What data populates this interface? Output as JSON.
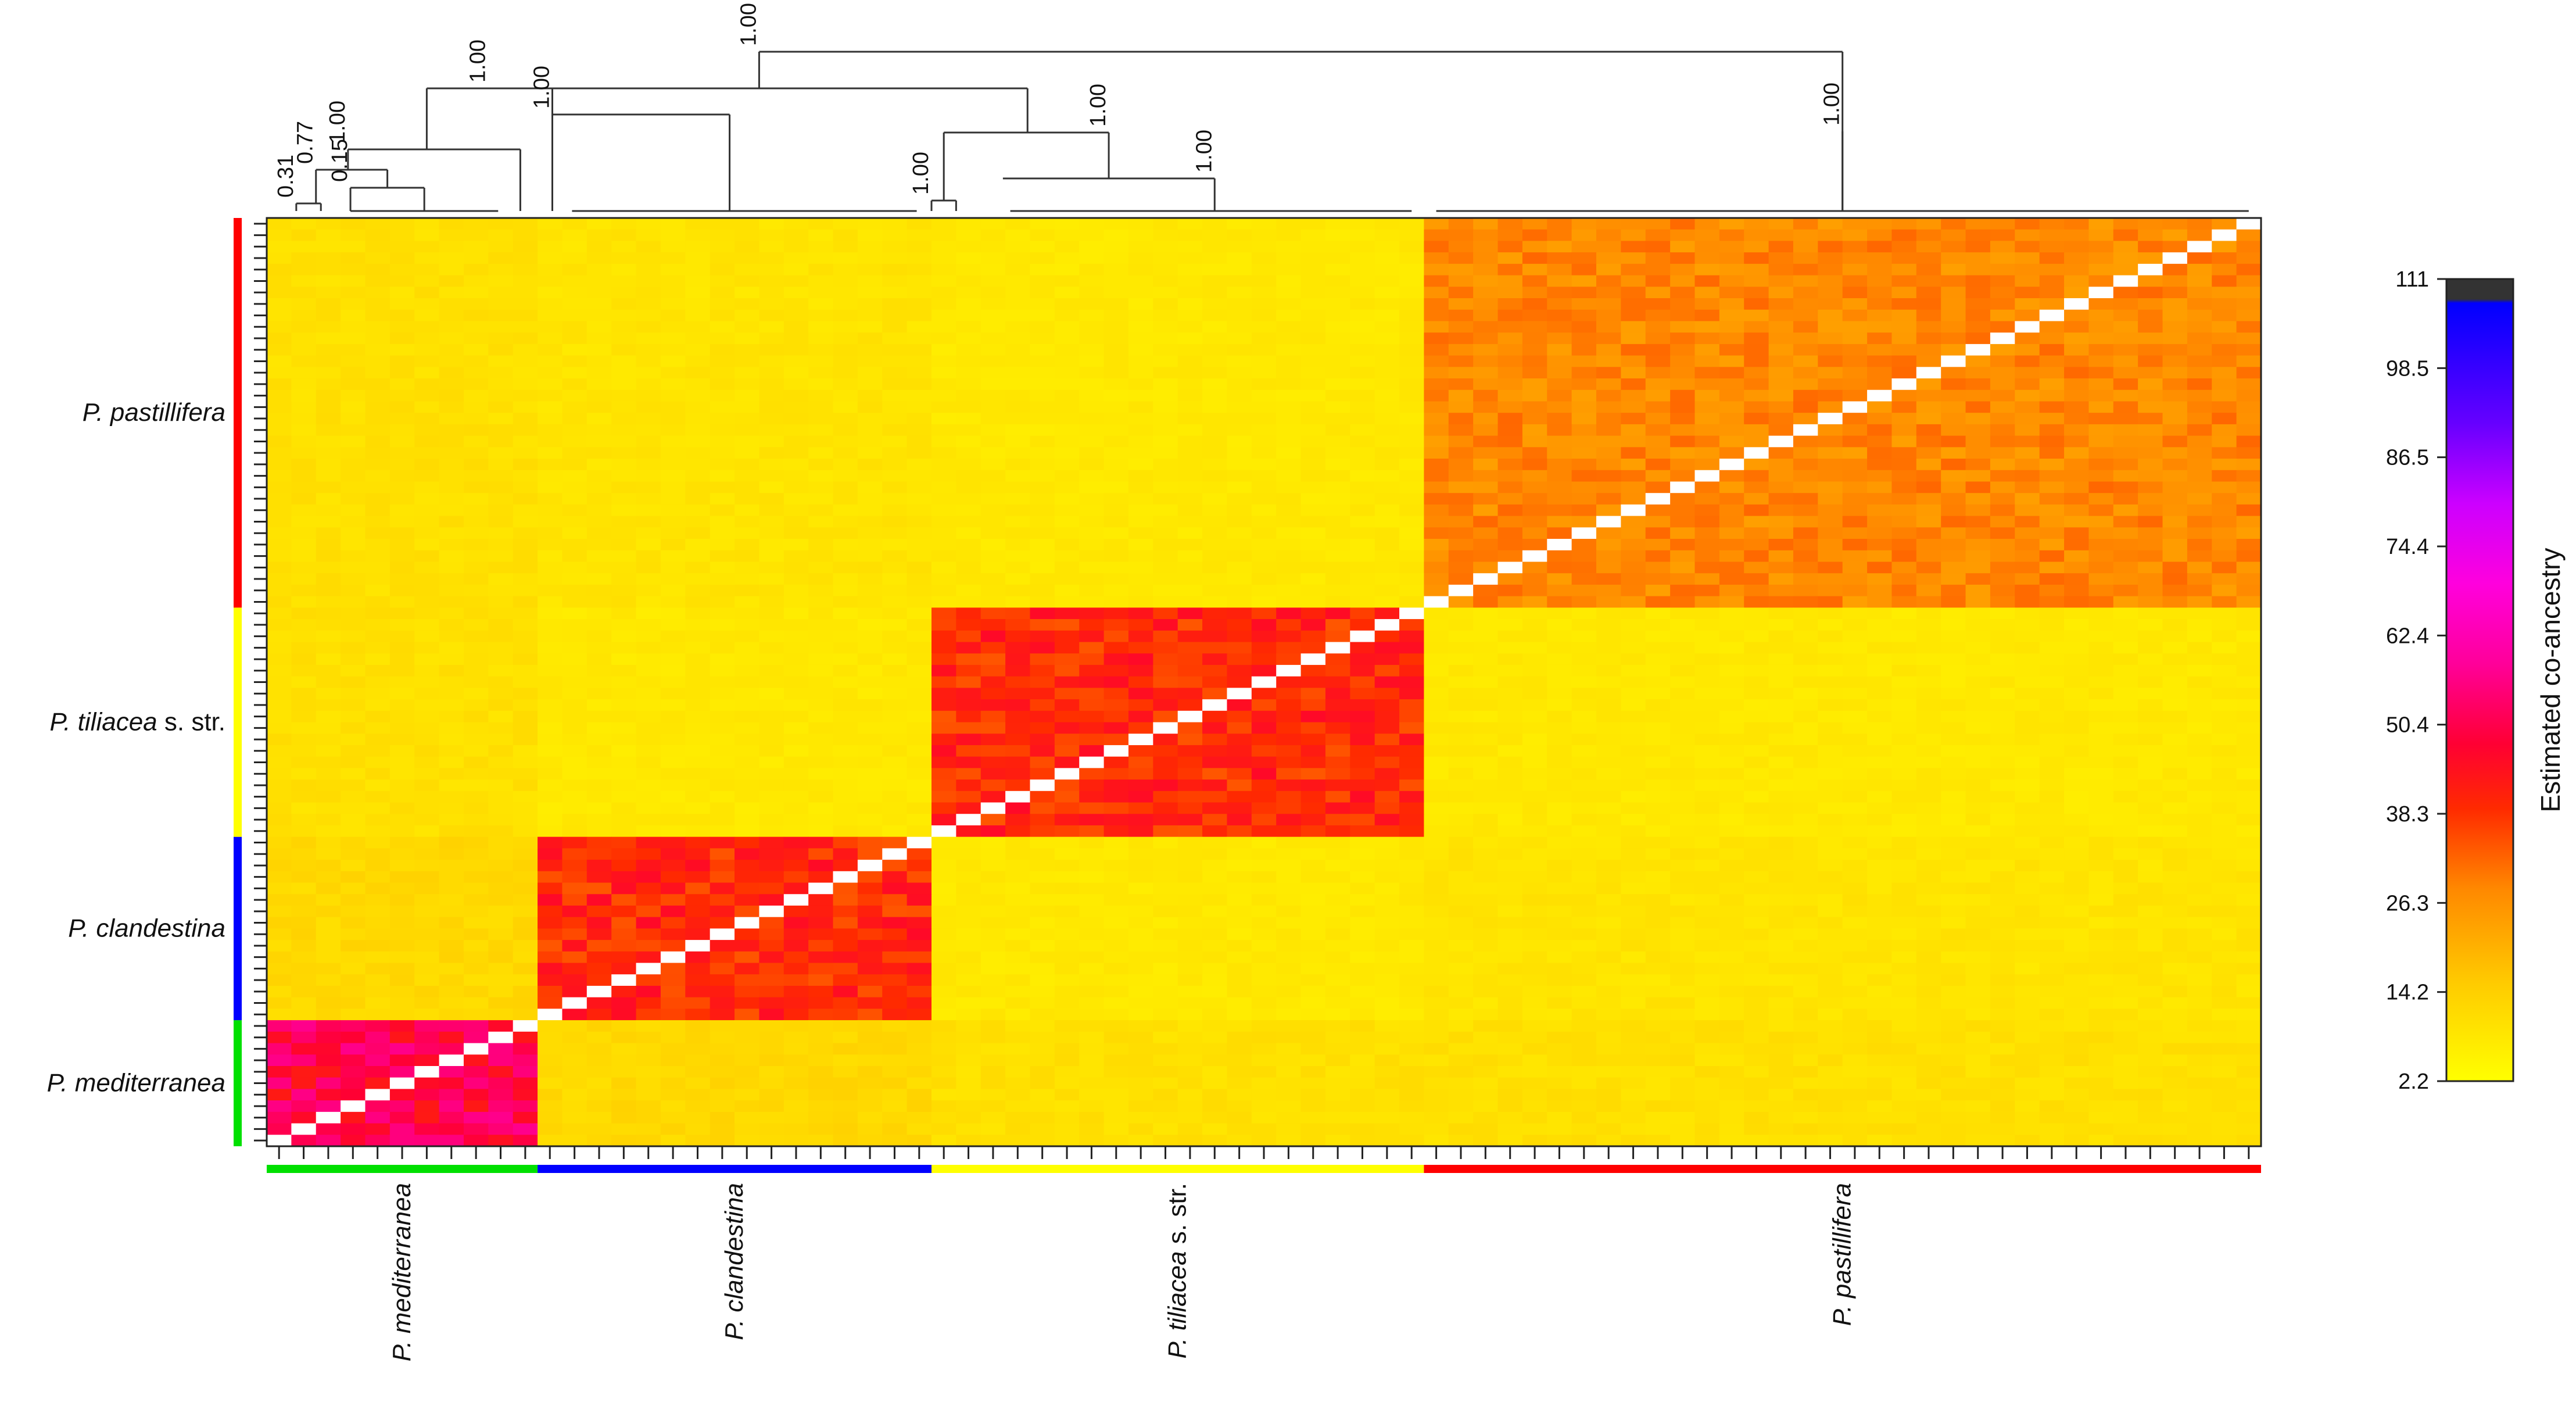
{
  "chart_data": {
    "type": "heatmap",
    "title": "",
    "legend": {
      "label": "Estimated co-ancestry",
      "ticks": [
        "111",
        "98.5",
        "86.5",
        "74.4",
        "62.4",
        "50.4",
        "38.3",
        "26.3",
        "14.2",
        "2.2"
      ],
      "range": [
        2.2,
        111
      ]
    },
    "groups": [
      {
        "name": "P. mediterranea",
        "name_italic": "P. mediterranea",
        "name_suffix": "",
        "color": "#00e000",
        "n": 11
      },
      {
        "name": "P. clandestina",
        "name_italic": "P. clandestina",
        "name_suffix": "",
        "color": "#0000ff",
        "n": 16
      },
      {
        "name": "P. tiliacea s. str.",
        "name_italic": "P. tiliacea",
        "name_suffix": " s. str.",
        "color": "#ffff00",
        "n": 20
      },
      {
        "name": "P. pastillifera",
        "name_italic": "P. pastillifera",
        "name_suffix": "",
        "color": "#ff0000",
        "n": 34
      }
    ],
    "block_means": [
      [
        50,
        12,
        10,
        10
      ],
      [
        12,
        40,
        8,
        9
      ],
      [
        10,
        8,
        40,
        8
      ],
      [
        10,
        9,
        8,
        28
      ]
    ],
    "dendrogram_support": [
      "1.00",
      "1.00",
      "0.77",
      "1.00",
      "0.31",
      "0.15",
      "1.00",
      "1.00",
      "1.00",
      "1.00",
      "1.00"
    ]
  }
}
